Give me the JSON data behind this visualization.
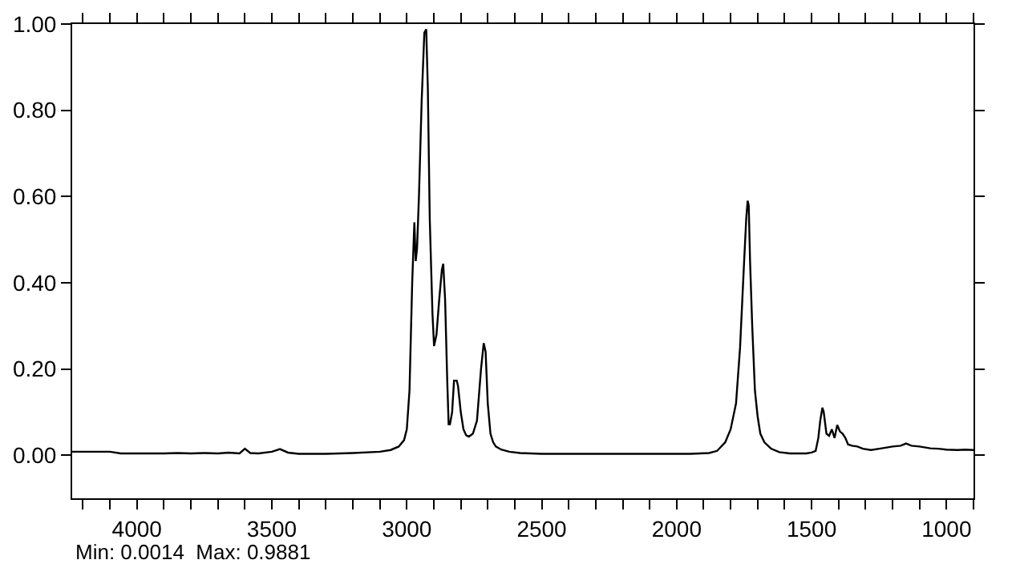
{
  "chart_data": {
    "type": "line",
    "x": [
      4240,
      4100,
      4060,
      4000,
      3900,
      3850,
      3800,
      3750,
      3700,
      3660,
      3620,
      3600,
      3580,
      3550,
      3500,
      3470,
      3440,
      3400,
      3300,
      3200,
      3100,
      3060,
      3030,
      3010,
      3000,
      2990,
      2980,
      2972,
      2967,
      2962,
      2955,
      2945,
      2935,
      2928,
      2922,
      2915,
      2905,
      2899,
      2890,
      2880,
      2870,
      2865,
      2858,
      2850,
      2845,
      2840,
      2832,
      2825,
      2815,
      2810,
      2800,
      2790,
      2780,
      2770,
      2755,
      2740,
      2725,
      2715,
      2708,
      2700,
      2690,
      2680,
      2670,
      2650,
      2620,
      2580,
      2500,
      2300,
      2100,
      1950,
      1880,
      1850,
      1820,
      1800,
      1780,
      1765,
      1750,
      1742,
      1737,
      1733,
      1728,
      1720,
      1710,
      1700,
      1690,
      1675,
      1650,
      1620,
      1580,
      1540,
      1520,
      1500,
      1485,
      1475,
      1468,
      1460,
      1455,
      1445,
      1435,
      1425,
      1415,
      1405,
      1395,
      1385,
      1375,
      1365,
      1350,
      1330,
      1310,
      1280,
      1240,
      1200,
      1170,
      1150,
      1130,
      1100,
      1060,
      1030,
      1000,
      960,
      930,
      900
    ],
    "values": [
      0.008,
      0.008,
      0.004,
      0.004,
      0.004,
      0.005,
      0.004,
      0.005,
      0.004,
      0.006,
      0.004,
      0.015,
      0.005,
      0.004,
      0.008,
      0.014,
      0.006,
      0.003,
      0.003,
      0.005,
      0.008,
      0.012,
      0.02,
      0.035,
      0.06,
      0.15,
      0.4,
      0.54,
      0.45,
      0.48,
      0.6,
      0.82,
      0.98,
      0.988,
      0.85,
      0.55,
      0.33,
      0.253,
      0.28,
      0.36,
      0.43,
      0.444,
      0.36,
      0.17,
      0.072,
      0.072,
      0.1,
      0.173,
      0.173,
      0.16,
      0.1,
      0.06,
      0.046,
      0.043,
      0.05,
      0.08,
      0.2,
      0.26,
      0.24,
      0.12,
      0.05,
      0.03,
      0.02,
      0.013,
      0.008,
      0.005,
      0.003,
      0.003,
      0.003,
      0.003,
      0.005,
      0.01,
      0.03,
      0.06,
      0.12,
      0.25,
      0.45,
      0.55,
      0.59,
      0.58,
      0.45,
      0.3,
      0.15,
      0.09,
      0.05,
      0.03,
      0.015,
      0.007,
      0.004,
      0.004,
      0.004,
      0.006,
      0.01,
      0.04,
      0.08,
      0.11,
      0.1,
      0.05,
      0.045,
      0.06,
      0.04,
      0.07,
      0.055,
      0.05,
      0.04,
      0.025,
      0.022,
      0.02,
      0.015,
      0.012,
      0.016,
      0.02,
      0.022,
      0.027,
      0.022,
      0.02,
      0.016,
      0.015,
      0.013,
      0.012,
      0.013,
      0.012
    ],
    "color": "#000000",
    "xlim": [
      4240,
      900
    ],
    "ylim": [
      -0.1,
      1.0
    ],
    "xticks": [
      {
        "value": 4200,
        "label": null
      },
      {
        "value": 4100,
        "label": null
      },
      4000,
      {
        "value": 3900,
        "label": null
      },
      {
        "value": 3800,
        "label": null
      },
      {
        "value": 3700,
        "label": null
      },
      {
        "value": 3600,
        "label": null
      },
      3500,
      {
        "value": 3400,
        "label": null
      },
      {
        "value": 3300,
        "label": null
      },
      {
        "value": 3200,
        "label": null
      },
      {
        "value": 3100,
        "label": null
      },
      3000,
      {
        "value": 2900,
        "label": null
      },
      {
        "value": 2800,
        "label": null
      },
      {
        "value": 2700,
        "label": null
      },
      {
        "value": 2600,
        "label": null
      },
      2500,
      {
        "value": 2400,
        "label": null
      },
      {
        "value": 2300,
        "label": null
      },
      {
        "value": 2200,
        "label": null
      },
      {
        "value": 2100,
        "label": null
      },
      2000,
      {
        "value": 1900,
        "label": null
      },
      {
        "value": 1800,
        "label": null
      },
      {
        "value": 1700,
        "label": null
      },
      {
        "value": 1600,
        "label": null
      },
      1500,
      {
        "value": 1400,
        "label": null
      },
      {
        "value": 1300,
        "label": null
      },
      {
        "value": 1200,
        "label": null
      },
      {
        "value": 1100,
        "label": null
      },
      1000,
      {
        "value": 900,
        "label": null
      }
    ],
    "yticks": [
      {
        "value": 0,
        "label": "0.00"
      },
      {
        "value": 0.2,
        "label": "0.20"
      },
      {
        "value": 0.4,
        "label": "0.40"
      },
      {
        "value": 0.6,
        "label": "0.60"
      },
      {
        "value": 0.8,
        "label": "0.80"
      },
      {
        "value": 1,
        "label": "1.00"
      }
    ],
    "annotations": [
      "Min: 0.0014  Max: 0.9881"
    ],
    "marker": "none",
    "line_style": "solid"
  }
}
